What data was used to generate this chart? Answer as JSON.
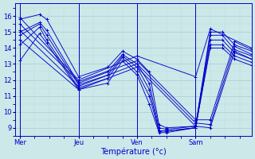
{
  "xlabel": "Température (°c)",
  "bg_color": "#cce8e8",
  "line_color": "#0000cc",
  "grid_major_color": "#aacccc",
  "grid_minor_color": "#bbdddd",
  "ylim": [
    8.5,
    16.8
  ],
  "xlim": [
    0,
    97
  ],
  "yticks": [
    9,
    10,
    11,
    12,
    13,
    14,
    15,
    16
  ],
  "xtick_positions": [
    2,
    26,
    50,
    74
  ],
  "xtick_labels": [
    "Mer",
    "Jeu",
    "Ven",
    "Sam"
  ],
  "day_lines": [
    2,
    26,
    50,
    74
  ],
  "series": [
    [
      [
        2,
        15.8
      ],
      [
        10,
        16.1
      ],
      [
        13,
        15.8
      ],
      [
        26,
        12.2
      ],
      [
        38,
        12.8
      ],
      [
        44,
        13.8
      ],
      [
        50,
        13.3
      ],
      [
        55,
        12.5
      ],
      [
        59,
        9.2
      ],
      [
        62,
        9.0
      ],
      [
        74,
        9.1
      ],
      [
        80,
        15.0
      ],
      [
        85,
        15.0
      ],
      [
        90,
        14.2
      ],
      [
        97,
        13.8
      ]
    ],
    [
      [
        2,
        15.0
      ],
      [
        10,
        15.6
      ],
      [
        13,
        15.1
      ],
      [
        26,
        11.8
      ],
      [
        38,
        12.5
      ],
      [
        44,
        13.6
      ],
      [
        50,
        13.0
      ],
      [
        55,
        11.8
      ],
      [
        59,
        9.0
      ],
      [
        62,
        8.9
      ],
      [
        74,
        9.1
      ],
      [
        80,
        14.8
      ],
      [
        85,
        14.8
      ],
      [
        90,
        13.9
      ],
      [
        97,
        13.5
      ]
    ],
    [
      [
        2,
        14.8
      ],
      [
        10,
        15.5
      ],
      [
        13,
        14.8
      ],
      [
        26,
        11.7
      ],
      [
        38,
        12.3
      ],
      [
        44,
        13.5
      ],
      [
        50,
        12.8
      ],
      [
        55,
        11.4
      ],
      [
        59,
        8.8
      ],
      [
        62,
        8.8
      ],
      [
        74,
        9.0
      ],
      [
        80,
        14.5
      ],
      [
        85,
        14.5
      ],
      [
        90,
        13.7
      ],
      [
        97,
        13.3
      ]
    ],
    [
      [
        2,
        14.2
      ],
      [
        10,
        15.3
      ],
      [
        13,
        14.5
      ],
      [
        26,
        11.5
      ],
      [
        38,
        12.1
      ],
      [
        44,
        13.4
      ],
      [
        50,
        12.5
      ],
      [
        55,
        11.0
      ],
      [
        59,
        8.8
      ],
      [
        62,
        8.8
      ],
      [
        74,
        9.0
      ],
      [
        80,
        14.2
      ],
      [
        85,
        14.2
      ],
      [
        90,
        13.5
      ],
      [
        97,
        13.1
      ]
    ],
    [
      [
        2,
        13.2
      ],
      [
        10,
        14.9
      ],
      [
        13,
        14.3
      ],
      [
        26,
        11.4
      ],
      [
        38,
        11.8
      ],
      [
        44,
        13.2
      ],
      [
        50,
        12.3
      ],
      [
        55,
        10.5
      ],
      [
        59,
        8.7
      ],
      [
        62,
        8.7
      ],
      [
        74,
        9.0
      ],
      [
        80,
        14.0
      ],
      [
        85,
        14.0
      ],
      [
        90,
        13.3
      ],
      [
        97,
        12.9
      ]
    ],
    [
      [
        2,
        15.9
      ],
      [
        26,
        12.0
      ],
      [
        50,
        13.5
      ],
      [
        74,
        12.2
      ],
      [
        80,
        15.2
      ],
      [
        97,
        14.0
      ]
    ],
    [
      [
        2,
        15.5
      ],
      [
        26,
        11.9
      ],
      [
        50,
        13.2
      ],
      [
        74,
        9.5
      ],
      [
        80,
        9.5
      ],
      [
        90,
        14.4
      ],
      [
        97,
        13.9
      ]
    ],
    [
      [
        2,
        15.1
      ],
      [
        26,
        11.6
      ],
      [
        50,
        13.0
      ],
      [
        74,
        9.3
      ],
      [
        80,
        9.2
      ],
      [
        90,
        14.1
      ],
      [
        97,
        13.6
      ]
    ],
    [
      [
        2,
        14.5
      ],
      [
        26,
        11.4
      ],
      [
        50,
        12.8
      ],
      [
        74,
        9.1
      ],
      [
        80,
        9.0
      ],
      [
        90,
        13.8
      ],
      [
        97,
        13.3
      ]
    ]
  ]
}
